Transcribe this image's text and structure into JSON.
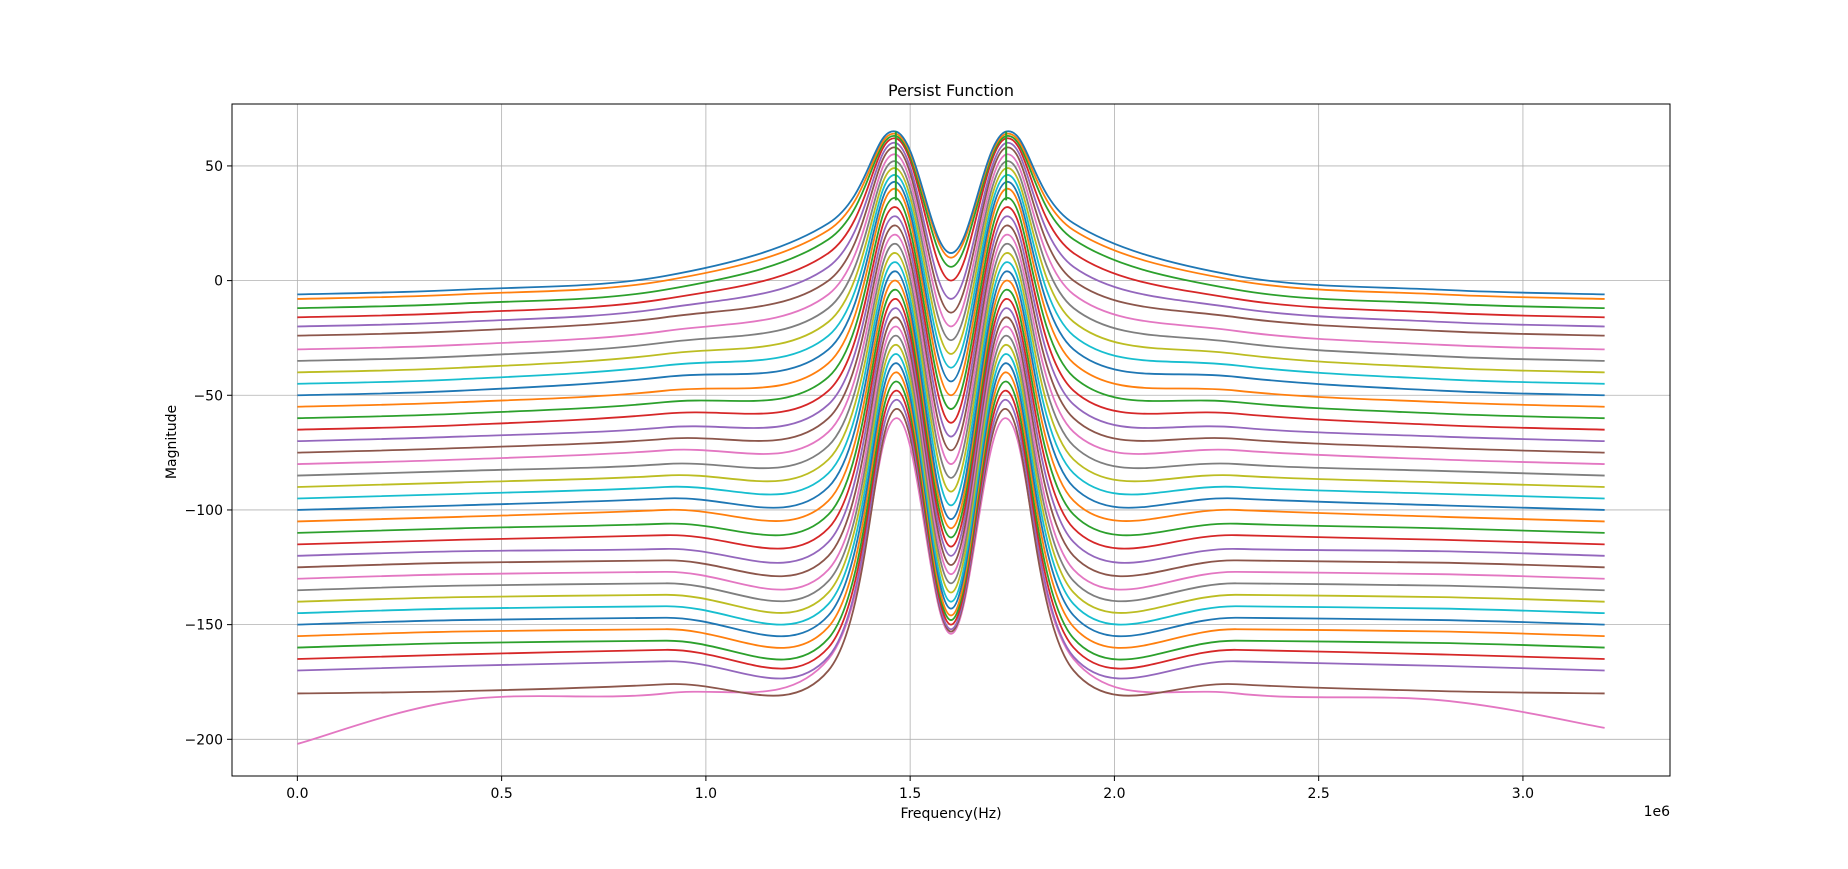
{
  "chart_data": {
    "type": "line",
    "title": "Persist Function",
    "xlabel": "Frequency(Hz)",
    "ylabel": "Magnitude",
    "x_offset_label": "1e6",
    "xlim": [
      -160000,
      3360000
    ],
    "ylim": [
      -216,
      77
    ],
    "x_range": [
      0,
      3200000
    ],
    "xticks": [
      0,
      500000,
      1000000,
      1500000,
      2000000,
      2500000,
      3000000
    ],
    "xtick_labels": [
      "0.0",
      "0.5",
      "1.0",
      "1.5",
      "2.0",
      "2.5",
      "3.0"
    ],
    "yticks": [
      50,
      0,
      -50,
      -100,
      -150,
      -200
    ],
    "ytick_labels": [
      "50",
      "0",
      "−50",
      "−100",
      "−150",
      "−200"
    ],
    "grid": true,
    "legend": "none",
    "peaks": [
      {
        "x": 1465000,
        "y": 65
      },
      {
        "x": 1735000,
        "y": 65
      }
    ],
    "series": [
      {
        "values": [
          -6,
          -4,
          2,
          25,
          65,
          12,
          65,
          25,
          2,
          -4,
          -6
        ]
      },
      {
        "values": [
          -8,
          -6,
          0,
          22,
          64,
          10,
          64,
          22,
          0,
          -6,
          -8
        ]
      },
      {
        "values": [
          -12,
          -10,
          -4,
          18,
          63,
          6,
          63,
          18,
          -4,
          -10,
          -12
        ]
      },
      {
        "values": [
          -16,
          -14,
          -8,
          12,
          62,
          0,
          62,
          12,
          -8,
          -14,
          -16
        ]
      },
      {
        "values": [
          -20,
          -18,
          -12,
          6,
          60,
          -8,
          60,
          6,
          -12,
          -18,
          -20
        ]
      },
      {
        "values": [
          -24,
          -22,
          -16,
          0,
          58,
          -14,
          58,
          0,
          -16,
          -22,
          -24
        ]
      },
      {
        "values": [
          -30,
          -28,
          -22,
          -6,
          55,
          -20,
          55,
          -6,
          -22,
          -28,
          -30
        ]
      },
      {
        "values": [
          -35,
          -33,
          -27,
          -12,
          52,
          -26,
          52,
          -12,
          -27,
          -33,
          -35
        ]
      },
      {
        "values": [
          -40,
          -38,
          -32,
          -18,
          49,
          -32,
          49,
          -18,
          -32,
          -38,
          -40
        ]
      },
      {
        "values": [
          -45,
          -43,
          -37,
          -24,
          46,
          -38,
          46,
          -24,
          -37,
          -43,
          -45
        ]
      },
      {
        "values": [
          -50,
          -48,
          -42,
          -30,
          43,
          -44,
          43,
          -30,
          -42,
          -48,
          -50
        ]
      },
      {
        "values": [
          -55,
          -53,
          -48,
          -36,
          40,
          -50,
          40,
          -36,
          -48,
          -53,
          -55
        ]
      },
      {
        "values": [
          -60,
          -58,
          -53,
          -42,
          36,
          -56,
          36,
          -42,
          -53,
          -58,
          -60
        ]
      },
      {
        "values": [
          -65,
          -63,
          -58,
          -48,
          32,
          -62,
          32,
          -48,
          -58,
          -63,
          -65
        ]
      },
      {
        "values": [
          -70,
          -68,
          -64,
          -54,
          28,
          -68,
          28,
          -54,
          -64,
          -68,
          -70
        ]
      },
      {
        "values": [
          -75,
          -73,
          -69,
          -60,
          24,
          -74,
          24,
          -60,
          -69,
          -73,
          -75
        ]
      },
      {
        "values": [
          -80,
          -78,
          -74,
          -66,
          20,
          -80,
          20,
          -66,
          -74,
          -78,
          -80
        ]
      },
      {
        "values": [
          -85,
          -83,
          -80,
          -72,
          16,
          -86,
          16,
          -72,
          -80,
          -83,
          -85
        ]
      },
      {
        "values": [
          -90,
          -88,
          -85,
          -78,
          12,
          -92,
          12,
          -78,
          -85,
          -88,
          -90
        ]
      },
      {
        "values": [
          -95,
          -93,
          -90,
          -84,
          8,
          -98,
          8,
          -84,
          -90,
          -93,
          -95
        ]
      },
      {
        "values": [
          -100,
          -98,
          -95,
          -90,
          4,
          -104,
          4,
          -90,
          -95,
          -98,
          -100
        ]
      },
      {
        "values": [
          -105,
          -103,
          -100,
          -96,
          0,
          -108,
          0,
          -96,
          -100,
          -103,
          -105
        ]
      },
      {
        "values": [
          -110,
          -108,
          -106,
          -102,
          -4,
          -112,
          -4,
          -102,
          -106,
          -108,
          -110
        ]
      },
      {
        "values": [
          -115,
          -113,
          -111,
          -108,
          -8,
          -116,
          -8,
          -108,
          -111,
          -113,
          -115
        ]
      },
      {
        "values": [
          -120,
          -118,
          -117,
          -114,
          -12,
          -120,
          -12,
          -114,
          -117,
          -118,
          -120
        ]
      },
      {
        "values": [
          -125,
          -123,
          -122,
          -120,
          -16,
          -124,
          -16,
          -120,
          -122,
          -123,
          -125
        ]
      },
      {
        "values": [
          -130,
          -128,
          -127,
          -126,
          -20,
          -128,
          -20,
          -126,
          -127,
          -128,
          -130
        ]
      },
      {
        "values": [
          -135,
          -133,
          -132,
          -131,
          -24,
          -132,
          -24,
          -131,
          -132,
          -133,
          -135
        ]
      },
      {
        "values": [
          -140,
          -138,
          -137,
          -136,
          -28,
          -136,
          -28,
          -136,
          -137,
          -138,
          -140
        ]
      },
      {
        "values": [
          -145,
          -143,
          -142,
          -141,
          -32,
          -140,
          -32,
          -141,
          -142,
          -143,
          -145
        ]
      },
      {
        "values": [
          -150,
          -148,
          -147,
          -146,
          -36,
          -143,
          -36,
          -146,
          -147,
          -148,
          -150
        ]
      },
      {
        "values": [
          -155,
          -153,
          -152,
          -151,
          -40,
          -146,
          -40,
          -151,
          -152,
          -153,
          -155
        ]
      },
      {
        "values": [
          -160,
          -158,
          -157,
          -156,
          -44,
          -148,
          -44,
          -156,
          -157,
          -158,
          -160
        ]
      },
      {
        "values": [
          -165,
          -163,
          -161,
          -160,
          -48,
          -150,
          -48,
          -160,
          -161,
          -163,
          -165
        ]
      },
      {
        "values": [
          -170,
          -168,
          -166,
          -164,
          -52,
          -152,
          -52,
          -164,
          -166,
          -168,
          -170
        ]
      },
      {
        "values": [
          -180,
          -179,
          -176,
          -170,
          -56,
          -153,
          -56,
          -170,
          -176,
          -179,
          -180
        ]
      },
      {
        "values": [
          -202,
          -183,
          -180,
          -165,
          -60,
          -154,
          -60,
          -165,
          -180,
          -183,
          -195
        ]
      }
    ],
    "series_x": [
      0,
      400000,
      900000,
      1300000,
      1465000,
      1600000,
      1735000,
      1900000,
      2300000,
      2800000,
      3200000
    ],
    "colors": [
      "#1f77b4",
      "#ff7f0e",
      "#2ca02c",
      "#d62728",
      "#9467bd",
      "#8c564b",
      "#e377c2",
      "#7f7f7f",
      "#bcbd22",
      "#17becf"
    ]
  }
}
